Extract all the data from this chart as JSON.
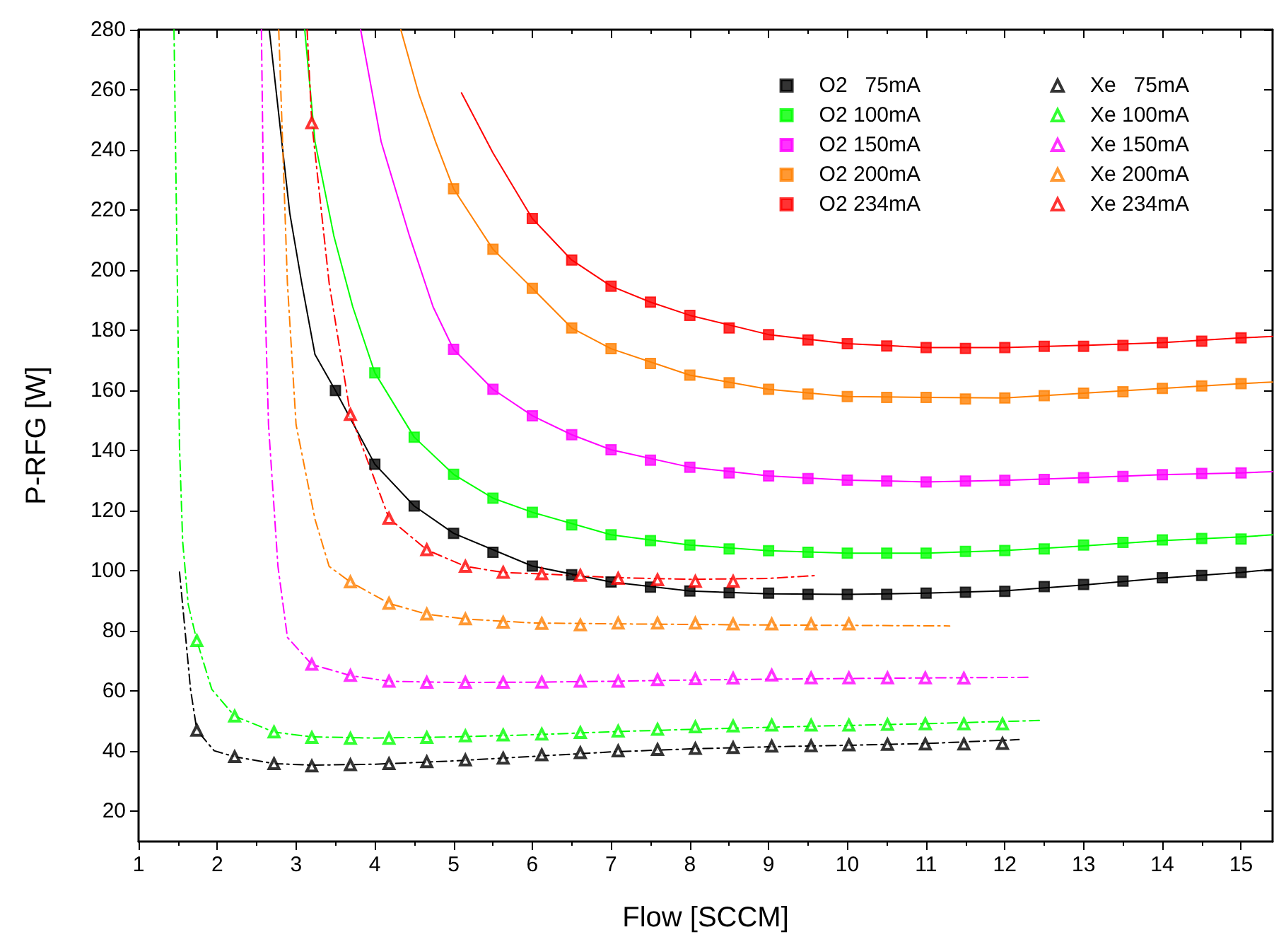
{
  "chart_data": {
    "type": "scatter",
    "xlabel": "Flow [SCCM]",
    "ylabel": "P-RFG [W]",
    "xlim": [
      1,
      15.4
    ],
    "xticks": [
      1,
      2,
      3,
      4,
      5,
      6,
      7,
      8,
      9,
      10,
      11,
      12,
      13,
      14,
      15
    ],
    "ylim": [
      10,
      280
    ],
    "yticks": [
      20,
      40,
      60,
      80,
      100,
      120,
      140,
      160,
      180,
      200,
      220,
      240,
      260,
      280
    ],
    "legend": "top right",
    "series": [
      {
        "name": "O2   75mA",
        "marker": "square",
        "color": "#000000",
        "x": [
          3.5,
          4,
          4.5,
          5,
          5.5,
          6,
          6.5,
          7,
          7.5,
          8,
          8.5,
          9,
          9.5,
          10,
          10.5,
          11,
          11.5,
          12,
          12.5,
          13,
          13.5,
          14,
          14.5,
          15
        ],
        "values": [
          160.0,
          135.5,
          121.6,
          112.5,
          106.2,
          101.6,
          98.7,
          96.3,
          94.6,
          93.3,
          92.7,
          92.6,
          92.2,
          92.2,
          92.2,
          92.6,
          92.9,
          93.2,
          94.8,
          95.5,
          96.6,
          97.7,
          98.5,
          99.5
        ]
      },
      {
        "name": "O2 100mA",
        "marker": "square",
        "color": "#00ff00",
        "x": [
          4,
          4.5,
          5,
          5.5,
          6,
          6.5,
          7,
          7.5,
          8,
          8.5,
          9,
          9.5,
          10,
          10.5,
          11,
          11.5,
          12,
          12.5,
          13,
          13.5,
          14,
          14.5,
          15
        ],
        "values": [
          165.9,
          144.5,
          132.1,
          124.2,
          119.5,
          115.3,
          112.0,
          110.1,
          108.6,
          107.3,
          106.7,
          106.2,
          105.9,
          105.9,
          105.9,
          106.5,
          106.8,
          107.3,
          108.6,
          109.5,
          110.3,
          110.8,
          110.6
        ]
      },
      {
        "name": "O2 150mA",
        "marker": "square",
        "color": "#ff00ff",
        "x": [
          5,
          5.5,
          6,
          6.5,
          7,
          7.5,
          8,
          8.5,
          9,
          9.5,
          10,
          10.5,
          11,
          11.5,
          12,
          12.5,
          13,
          13.5,
          14,
          14.5,
          15
        ],
        "values": [
          173.7,
          160.4,
          151.6,
          145.3,
          140.3,
          136.8,
          134.5,
          132.6,
          131.6,
          130.7,
          130.2,
          129.9,
          129.6,
          129.9,
          130.1,
          130.4,
          131.0,
          131.4,
          132.0,
          132.4,
          132.6
        ]
      },
      {
        "name": "O2 200mA",
        "marker": "square",
        "color": "#ff8000",
        "x": [
          5,
          5.5,
          6,
          6.5,
          7,
          7.5,
          8,
          8.5,
          9,
          9.5,
          10,
          10.5,
          11,
          11.5,
          12,
          12.5,
          13,
          13.5,
          14,
          14.5,
          15
        ],
        "values": [
          227.1,
          207.0,
          194.0,
          180.8,
          173.9,
          169.0,
          165.1,
          162.6,
          160.4,
          158.8,
          158.0,
          157.7,
          157.7,
          157.2,
          157.5,
          158.3,
          159.1,
          159.6,
          160.7,
          161.5,
          162.3
        ]
      },
      {
        "name": "O2 234mA",
        "marker": "square",
        "color": "#ff0000",
        "x": [
          6,
          6.5,
          7,
          7.5,
          8,
          8.5,
          9,
          9.5,
          10,
          10.5,
          11,
          11.5,
          12,
          12.5,
          13,
          13.5,
          14,
          14.5,
          15
        ],
        "values": [
          217.2,
          203.4,
          194.7,
          189.4,
          185.0,
          180.8,
          178.6,
          176.8,
          175.6,
          174.8,
          174.3,
          174.0,
          174.3,
          174.7,
          174.7,
          175.0,
          175.9,
          176.4,
          177.5
        ]
      },
      {
        "name": "Xe   75mA",
        "marker": "triangle",
        "color": "#000000",
        "x": [
          1.74,
          2.22,
          2.72,
          3.2,
          3.69,
          4.18,
          4.66,
          5.15,
          5.63,
          6.12,
          6.61,
          7.09,
          7.59,
          8.07,
          8.55,
          9.04,
          9.54,
          10.02,
          10.51,
          10.99,
          11.48,
          11.97
        ],
        "values": [
          47.0,
          38.2,
          35.9,
          35.1,
          35.5,
          35.9,
          36.5,
          37.1,
          37.7,
          38.8,
          39.5,
          40.1,
          40.6,
          40.9,
          41.2,
          41.7,
          41.8,
          42.1,
          42.3,
          42.4,
          42.4,
          42.6
        ]
      },
      {
        "name": "Xe 100mA",
        "marker": "triangle",
        "color": "#00ff00",
        "x": [
          1.74,
          2.22,
          2.72,
          3.2,
          3.69,
          4.18,
          4.66,
          5.15,
          5.63,
          6.12,
          6.61,
          7.09,
          7.59,
          8.07,
          8.55,
          9.04,
          9.54,
          10.02,
          10.51,
          10.99,
          11.48,
          11.97
        ],
        "values": [
          76.8,
          51.7,
          46.4,
          44.6,
          44.3,
          44.3,
          44.6,
          45.1,
          45.4,
          45.7,
          46.2,
          46.7,
          47.3,
          48.1,
          48.4,
          48.7,
          48.7,
          48.7,
          48.9,
          49.1,
          49.1,
          49.1
        ]
      },
      {
        "name": "Xe 150mA",
        "marker": "triangle",
        "color": "#ff00ff",
        "x": [
          3.2,
          3.69,
          4.18,
          4.66,
          5.15,
          5.63,
          6.12,
          6.61,
          7.09,
          7.59,
          8.07,
          8.55,
          9.04,
          9.54,
          10.02,
          10.51,
          10.99,
          11.48
        ],
        "values": [
          68.9,
          65.2,
          63.3,
          62.9,
          62.9,
          62.9,
          63.0,
          63.3,
          63.3,
          63.8,
          64.1,
          64.3,
          65.3,
          64.4,
          64.4,
          64.4,
          64.4,
          64.3
        ]
      },
      {
        "name": "Xe 200mA",
        "marker": "triangle",
        "color": "#ff8000",
        "x": [
          3.69,
          4.18,
          4.66,
          5.15,
          5.63,
          6.12,
          6.61,
          7.09,
          7.59,
          8.07,
          8.55,
          9.04,
          9.54,
          10.02
        ],
        "values": [
          96.3,
          89.2,
          85.6,
          84.0,
          82.9,
          82.5,
          82.0,
          82.6,
          82.6,
          82.6,
          82.3,
          82.3,
          82.3,
          82.3
        ]
      },
      {
        "name": "Xe 234mA",
        "marker": "triangle",
        "color": "#ff0000",
        "x": [
          3.2,
          3.69,
          4.18,
          4.66,
          5.15,
          5.63,
          6.12,
          6.61,
          7.09,
          7.59,
          8.07,
          8.55
        ],
        "values": [
          249,
          152,
          117.5,
          107,
          101.5,
          99.5,
          99,
          98.5,
          97.5,
          97,
          96.5,
          96.5
        ]
      },
      {
        "type": "line",
        "line_style": "solid",
        "marker": "none",
        "color": "#000000",
        "x": [
          2.66,
          2.92,
          3.07,
          3.24,
          3.5,
          4,
          4.5,
          5,
          6,
          7,
          8,
          9,
          10,
          11,
          12,
          13,
          14,
          15,
          15.4
        ],
        "values": [
          280,
          219,
          196,
          172,
          160,
          135.5,
          121.6,
          112.5,
          101.6,
          96.3,
          93.3,
          92.4,
          92.2,
          92.6,
          93.4,
          95.3,
          97.6,
          99.5,
          100.5
        ]
      },
      {
        "type": "line",
        "line_style": "solid",
        "marker": "none",
        "color": "#00ff00",
        "x": [
          3.11,
          3.24,
          3.48,
          3.72,
          4,
          4.5,
          5,
          5.5,
          6,
          7,
          8,
          9,
          10,
          11,
          12,
          13,
          14,
          15,
          15.4
        ],
        "values": [
          280,
          242.8,
          211.4,
          187.8,
          165.9,
          144.5,
          132.1,
          124.2,
          119.5,
          112.0,
          108.6,
          106.7,
          105.9,
          105.9,
          106.8,
          108.3,
          110.1,
          111.3,
          112
        ]
      },
      {
        "type": "line",
        "line_style": "solid",
        "marker": "none",
        "color": "#ff00ff",
        "x": [
          3.82,
          4.08,
          4.44,
          4.74,
          5,
          5.5,
          6,
          6.5,
          7,
          8,
          9,
          10,
          11,
          12,
          13,
          14,
          15,
          15.4
        ],
        "values": [
          280,
          242.8,
          211.4,
          187.8,
          173.7,
          160.4,
          151.6,
          145.3,
          140.3,
          134.5,
          131.6,
          130.2,
          129.6,
          130.1,
          131.0,
          132.0,
          132.6,
          133
        ]
      },
      {
        "type": "line",
        "line_style": "solid",
        "marker": "none",
        "color": "#ff8000",
        "x": [
          4.33,
          4.56,
          4.77,
          5,
          5.5,
          6,
          6.5,
          7,
          8,
          9,
          10,
          11,
          12,
          13,
          14,
          15,
          15.4
        ],
        "values": [
          280,
          258.5,
          242.8,
          227.1,
          207.0,
          194.0,
          180.8,
          173.9,
          165.1,
          160.4,
          158.0,
          157.7,
          157.5,
          159.1,
          160.7,
          162.3,
          162.8
        ]
      },
      {
        "type": "line",
        "line_style": "solid",
        "marker": "none",
        "color": "#ff0000",
        "x": [
          5.1,
          5.5,
          6,
          6.5,
          7,
          7.5,
          8,
          9,
          10,
          11,
          12,
          13,
          14,
          15,
          15.4
        ],
        "values": [
          259,
          239,
          217.2,
          203.4,
          194.7,
          189.4,
          185.0,
          178.6,
          175.6,
          174.3,
          174.3,
          175.0,
          175.9,
          177.5,
          178
        ]
      },
      {
        "type": "line",
        "line_style": "dashed",
        "marker": "none",
        "color": "#000000",
        "x": [
          1.52,
          1.57,
          1.66,
          1.74,
          1.96,
          2.22,
          2.72,
          3.2,
          4,
          5,
          6,
          7,
          8,
          9,
          10,
          11,
          12.18
        ],
        "values": [
          99.6,
          85.8,
          60.6,
          47.0,
          40.2,
          38.2,
          35.9,
          35.4,
          35.7,
          36.8,
          38.3,
          39.8,
          40.8,
          41.5,
          42.0,
          42.6,
          43.9
        ]
      },
      {
        "type": "line",
        "line_style": "dashed",
        "marker": "none",
        "color": "#00ff00",
        "x": [
          1.45,
          1.52,
          1.56,
          1.63,
          1.74,
          1.93,
          2.22,
          2.72,
          3.2,
          4,
          5,
          6,
          7,
          8,
          9,
          10,
          11,
          12.49
        ],
        "values": [
          280,
          141.2,
          109.8,
          88.9,
          76.8,
          60.6,
          51.7,
          46.4,
          44.8,
          44.4,
          44.8,
          45.5,
          46.5,
          47.3,
          48.0,
          48.6,
          49.2,
          50.3
        ]
      },
      {
        "type": "line",
        "line_style": "dashed",
        "marker": "none",
        "color": "#ff00ff",
        "x": [
          2.56,
          2.6,
          2.65,
          2.77,
          2.89,
          3.2,
          3.69,
          4.18,
          5,
          6,
          7,
          8,
          9,
          10,
          11,
          12.31
        ],
        "values": [
          280,
          195.7,
          148.6,
          101.5,
          77.9,
          68.9,
          65.2,
          63.3,
          62.9,
          63.0,
          63.3,
          63.7,
          64.0,
          64.2,
          64.4,
          64.6
        ]
      },
      {
        "type": "line",
        "line_style": "dashed",
        "marker": "none",
        "color": "#ff8000",
        "x": [
          2.78,
          2.89,
          3.0,
          3.24,
          3.42,
          3.69,
          4.18,
          4.66,
          5.15,
          6,
          7,
          8,
          9,
          10,
          11.3
        ],
        "values": [
          280,
          195.7,
          148.6,
          117.2,
          101.5,
          96.3,
          89.2,
          85.6,
          84.0,
          82.7,
          82.4,
          82.2,
          82.0,
          81.9,
          81.7
        ]
      },
      {
        "type": "line",
        "line_style": "dashed",
        "marker": "none",
        "color": "#ff0000",
        "x": [
          3.14,
          3.2,
          3.42,
          3.69,
          4.18,
          4.66,
          5.15,
          5.63,
          6.12,
          7,
          8,
          9,
          9.63
        ],
        "values": [
          280,
          249,
          195.7,
          152,
          117.5,
          107,
          101.5,
          99.5,
          99,
          97.8,
          97.2,
          97.5,
          98.5
        ]
      }
    ]
  }
}
